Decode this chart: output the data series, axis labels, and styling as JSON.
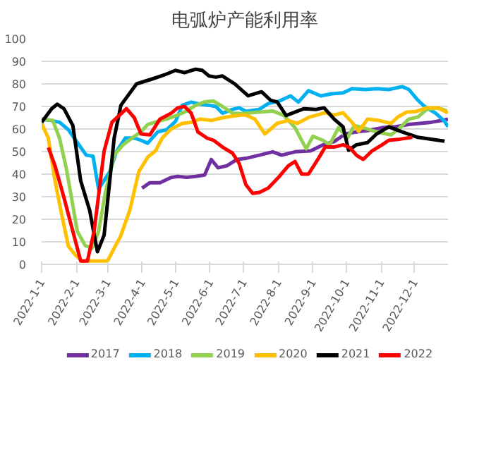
{
  "chart_data": {
    "type": "line",
    "title": "电弧炉产能利用率",
    "xlim": [
      "2022-01-01",
      "2022-12-31"
    ],
    "xticks": [
      {
        "value": "2022-01-01",
        "label": "2022-1-1"
      },
      {
        "value": "2022-02-01",
        "label": "2022-2-1"
      },
      {
        "value": "2022-03-01",
        "label": "2022-3-1"
      },
      {
        "value": "2022-04-01",
        "label": "2022-4-1"
      },
      {
        "value": "2022-05-01",
        "label": "2022-5-1"
      },
      {
        "value": "2022-06-01",
        "label": "2022-6-1"
      },
      {
        "value": "2022-07-01",
        "label": "2022-7-1"
      },
      {
        "value": "2022-08-01",
        "label": "2022-8-1"
      },
      {
        "value": "2022-09-01",
        "label": "2022-9-1"
      },
      {
        "value": "2022-10-01",
        "label": "2022-10-1"
      },
      {
        "value": "2022-11-01",
        "label": "2022-11-1"
      },
      {
        "value": "2022-12-01",
        "label": "2022-12-1"
      }
    ],
    "ylim": [
      0,
      100
    ],
    "yticks": [
      0,
      10,
      20,
      30,
      40,
      50,
      60,
      70,
      80,
      90,
      100
    ],
    "grid": "y",
    "legend": "bottom",
    "line_style": "solid",
    "series": [
      {
        "name": "2017",
        "color": "#7030a0",
        "x": [
          "2022-04-01",
          "2022-04-08",
          "2022-04-17",
          "2022-04-27",
          "2022-05-03",
          "2022-05-11",
          "2022-05-19",
          "2022-05-27",
          "2022-06-02",
          "2022-06-08",
          "2022-06-16",
          "2022-06-25",
          "2022-07-03",
          "2022-07-15",
          "2022-07-27",
          "2022-08-04",
          "2022-08-16",
          "2022-08-30",
          "2022-09-10",
          "2022-09-20",
          "2022-09-30",
          "2022-10-10",
          "2022-10-20",
          "2022-11-02",
          "2022-11-14",
          "2022-11-26",
          "2022-12-06",
          "2022-12-16",
          "2022-12-26",
          "2022-12-31"
        ],
        "values": [
          33.8,
          36.2,
          36.2,
          38.5,
          39,
          38.6,
          39,
          39.6,
          46.5,
          42.8,
          43.7,
          46.5,
          47,
          48.4,
          49.9,
          48.4,
          49.9,
          50.3,
          53,
          54.4,
          57.8,
          58.7,
          59.3,
          60.6,
          61,
          62,
          62.5,
          63,
          63.8,
          64.4
        ]
      },
      {
        "name": "2018",
        "color": "#00b0f0",
        "x": [
          "2022-01-01",
          "2022-01-09",
          "2022-01-17",
          "2022-01-25",
          "2022-02-02",
          "2022-02-10",
          "2022-02-16",
          "2022-02-21",
          "2022-03-03",
          "2022-03-09",
          "2022-03-17",
          "2022-03-25",
          "2022-03-31",
          "2022-04-06",
          "2022-04-15",
          "2022-04-23",
          "2022-05-01",
          "2022-05-07",
          "2022-05-15",
          "2022-05-23",
          "2022-05-31",
          "2022-06-06",
          "2022-06-12",
          "2022-06-21",
          "2022-06-27",
          "2022-07-03",
          "2022-07-15",
          "2022-07-23",
          "2022-08-02",
          "2022-08-12",
          "2022-08-19",
          "2022-08-28",
          "2022-09-08",
          "2022-09-18",
          "2022-09-28",
          "2022-10-06",
          "2022-10-18",
          "2022-10-28",
          "2022-11-08",
          "2022-11-20",
          "2022-11-26",
          "2022-12-04",
          "2022-12-10",
          "2022-12-20",
          "2022-12-28",
          "2022-12-31"
        ],
        "values": [
          64.4,
          63.8,
          63,
          59.7,
          54,
          48.4,
          48,
          33.4,
          41,
          50,
          56,
          56,
          55,
          53.7,
          58.7,
          59.7,
          63.4,
          70.5,
          71.9,
          71,
          70.5,
          70,
          67,
          68.7,
          69.4,
          67.8,
          68.7,
          71.3,
          72.4,
          74.7,
          71.9,
          77,
          74.7,
          75.6,
          76,
          77.9,
          77.5,
          77.9,
          77.5,
          78.8,
          77.5,
          72.8,
          70,
          67,
          63.4,
          61
        ]
      },
      {
        "name": "2019",
        "color": "#92d050",
        "x": [
          "2022-01-01",
          "2022-01-11",
          "2022-01-17",
          "2022-01-23",
          "2022-01-29",
          "2022-02-02",
          "2022-02-09",
          "2022-02-15",
          "2022-02-21",
          "2022-02-27",
          "2022-03-07",
          "2022-03-15",
          "2022-03-23",
          "2022-03-31",
          "2022-04-06",
          "2022-04-15",
          "2022-04-23",
          "2022-05-03",
          "2022-05-11",
          "2022-05-19",
          "2022-05-27",
          "2022-06-04",
          "2022-06-12",
          "2022-06-21",
          "2022-06-29",
          "2022-07-03",
          "2022-07-15",
          "2022-07-27",
          "2022-08-06",
          "2022-08-16",
          "2022-08-26",
          "2022-09-01",
          "2022-09-10",
          "2022-09-16",
          "2022-09-24",
          "2022-10-02",
          "2022-10-08",
          "2022-10-16",
          "2022-10-24",
          "2022-11-02",
          "2022-11-10",
          "2022-11-18",
          "2022-11-26",
          "2022-12-04",
          "2022-12-12",
          "2022-12-22",
          "2022-12-30"
        ],
        "values": [
          64.4,
          63.8,
          56,
          42.8,
          26,
          14.6,
          8.4,
          7.1,
          14.6,
          31.5,
          48.4,
          53,
          56,
          58.7,
          62,
          63.4,
          64.4,
          66.2,
          68,
          70.5,
          72,
          72.4,
          70,
          67,
          66.8,
          67,
          67.5,
          68,
          66,
          60.6,
          51.2,
          56.8,
          55,
          53,
          60.6,
          56,
          61.5,
          60.6,
          59.3,
          58.2,
          57.4,
          60.6,
          64.4,
          65.3,
          68.7,
          69.4,
          68
        ]
      },
      {
        "name": "2020",
        "color": "#ffc000",
        "x": [
          "2022-01-01",
          "2022-01-07",
          "2022-01-13",
          "2022-01-19",
          "2022-01-25",
          "2022-01-31",
          "2022-02-06",
          "2022-02-15",
          "2022-03-01",
          "2022-03-13",
          "2022-03-21",
          "2022-03-29",
          "2022-04-06",
          "2022-04-13",
          "2022-04-19",
          "2022-04-27",
          "2022-05-07",
          "2022-05-15",
          "2022-05-23",
          "2022-06-02",
          "2022-06-12",
          "2022-06-21",
          "2022-06-29",
          "2022-07-03",
          "2022-07-11",
          "2022-07-20",
          "2022-07-31",
          "2022-08-10",
          "2022-08-18",
          "2022-08-29",
          "2022-09-12",
          "2022-09-20",
          "2022-09-28",
          "2022-10-06",
          "2022-10-12",
          "2022-10-20",
          "2022-10-30",
          "2022-11-10",
          "2022-11-16",
          "2022-11-24",
          "2022-12-02",
          "2022-12-12",
          "2022-12-22",
          "2022-12-31"
        ],
        "values": [
          62.5,
          56,
          37,
          22,
          8,
          4.3,
          1.5,
          1.5,
          1.5,
          12.8,
          24,
          41,
          47.5,
          50.3,
          56,
          60,
          62.5,
          63,
          64.4,
          63.8,
          65,
          65.7,
          66.2,
          66.2,
          64.4,
          57.8,
          62.5,
          63.8,
          62.5,
          65.3,
          67.2,
          66.2,
          67.2,
          63,
          59,
          64.4,
          63.8,
          62.5,
          65.3,
          67.5,
          67.7,
          69.4,
          69.4,
          67.2
        ]
      },
      {
        "name": "2021",
        "color": "#000000",
        "x": [
          "2022-01-01",
          "2022-01-10",
          "2022-01-15",
          "2022-01-21",
          "2022-01-29",
          "2022-02-05",
          "2022-02-13",
          "2022-02-20",
          "2022-02-26",
          "2022-03-07",
          "2022-03-13",
          "2022-03-27",
          "2022-04-12",
          "2022-04-21",
          "2022-05-01",
          "2022-05-09",
          "2022-05-19",
          "2022-05-25",
          "2022-05-31",
          "2022-06-06",
          "2022-06-12",
          "2022-06-23",
          "2022-07-05",
          "2022-07-17",
          "2022-07-25",
          "2022-07-31",
          "2022-08-08",
          "2022-08-24",
          "2022-09-04",
          "2022-09-11",
          "2022-09-20",
          "2022-09-28",
          "2022-10-03",
          "2022-10-10",
          "2022-10-20",
          "2022-10-28",
          "2022-11-08",
          "2022-11-20",
          "2022-12-04",
          "2022-12-16",
          "2022-12-28"
        ],
        "values": [
          63,
          69,
          71,
          69,
          61.5,
          37,
          24,
          5.6,
          13,
          56,
          70.5,
          80,
          82.5,
          84,
          86,
          85,
          86.5,
          86,
          83.5,
          83,
          83.5,
          80,
          74.7,
          76.5,
          72.8,
          72,
          66,
          69,
          68.7,
          69.4,
          64.4,
          61,
          50.6,
          53,
          54,
          57.8,
          61,
          58.7,
          56.3,
          55.5,
          54.6
        ]
      },
      {
        "name": "2022",
        "color": "#ff0000",
        "x": [
          "2022-01-07",
          "2022-01-13",
          "2022-01-21",
          "2022-01-29",
          "2022-02-05",
          "2022-02-11",
          "2022-02-17",
          "2022-02-26",
          "2022-03-05",
          "2022-03-18",
          "2022-03-25",
          "2022-03-31",
          "2022-04-08",
          "2022-04-17",
          "2022-04-27",
          "2022-05-03",
          "2022-05-09",
          "2022-05-15",
          "2022-05-21",
          "2022-05-29",
          "2022-06-04",
          "2022-06-12",
          "2022-06-21",
          "2022-06-27",
          "2022-07-03",
          "2022-07-09",
          "2022-07-15",
          "2022-07-23",
          "2022-08-02",
          "2022-08-10",
          "2022-08-16",
          "2022-08-22",
          "2022-08-28",
          "2022-09-06",
          "2022-09-12",
          "2022-09-20",
          "2022-09-28",
          "2022-10-04",
          "2022-10-10",
          "2022-10-16",
          "2022-10-24",
          "2022-11-02",
          "2022-11-08",
          "2022-11-18",
          "2022-11-29"
        ],
        "values": [
          51.8,
          43.7,
          29.6,
          14.6,
          1.5,
          1.5,
          14.6,
          50.3,
          63,
          69,
          65,
          57.8,
          57.4,
          64.4,
          67,
          69.4,
          70,
          67,
          58.7,
          56,
          55,
          52,
          49.3,
          44.7,
          35.3,
          31.5,
          31.9,
          33.8,
          39,
          43.7,
          45.6,
          40,
          40,
          47,
          52,
          52,
          53,
          51.8,
          48.4,
          46.5,
          50.3,
          53,
          55,
          55.5,
          56.3
        ]
      }
    ]
  }
}
